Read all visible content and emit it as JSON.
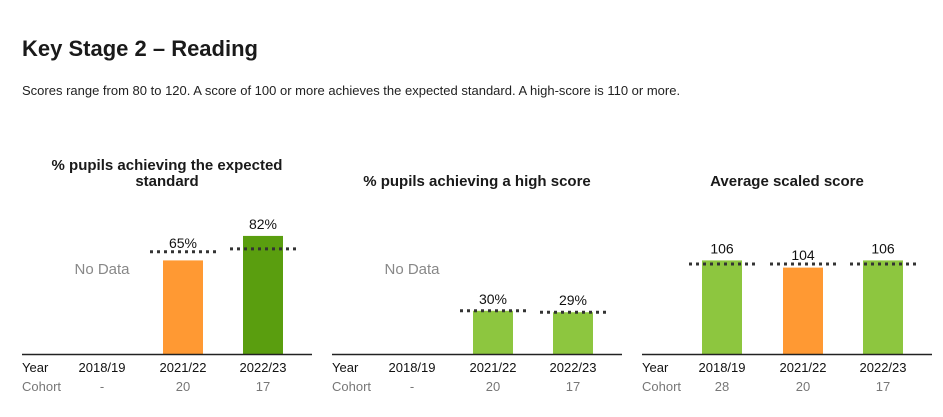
{
  "page": {
    "title": "Key Stage 2 – Reading",
    "subtitle": "Scores range from 80 to 120. A score of 100 or more achieves the expected standard. A high-score is 110 or more."
  },
  "labels": {
    "year": "Year",
    "cohort": "Cohort",
    "no_data": "No Data"
  },
  "colors": {
    "orange": "#ff9933",
    "light_green": "#8dc63f",
    "dark_green": "#5a9e0f",
    "benchmark": "#333333",
    "axis": "#222222",
    "cohort_text": "#777777"
  },
  "chart_data": [
    {
      "type": "bar",
      "title": "% pupils achieving the expected standard",
      "categories": [
        "2018/19",
        "2021/22",
        "2022/23"
      ],
      "cohort": [
        "-",
        "20",
        "17"
      ],
      "values": [
        null,
        65,
        82
      ],
      "value_labels": [
        "",
        "65%",
        "82%"
      ],
      "no_data": [
        true,
        false,
        false
      ],
      "bar_colors": [
        "#ff9933",
        "#ff9933",
        "#5a9e0f"
      ],
      "benchmark": [
        null,
        71,
        73
      ],
      "ylim": [
        0,
        100
      ],
      "grid": false
    },
    {
      "type": "bar",
      "title": "% pupils achieving a high score",
      "categories": [
        "2018/19",
        "2021/22",
        "2022/23"
      ],
      "cohort": [
        "-",
        "20",
        "17"
      ],
      "values": [
        null,
        30,
        29
      ],
      "value_labels": [
        "",
        "30%",
        "29%"
      ],
      "no_data": [
        true,
        false,
        false
      ],
      "bar_colors": [
        "#8dc63f",
        "#8dc63f",
        "#8dc63f"
      ],
      "benchmark": [
        null,
        30,
        29
      ],
      "ylim": [
        0,
        100
      ],
      "grid": false
    },
    {
      "type": "bar",
      "title": "Average scaled score",
      "categories": [
        "2018/19",
        "2021/22",
        "2022/23"
      ],
      "cohort": [
        "28",
        "20",
        "17"
      ],
      "values": [
        106,
        104,
        106
      ],
      "value_labels": [
        "106",
        "104",
        "106"
      ],
      "no_data": [
        false,
        false,
        false
      ],
      "bar_colors": [
        "#8dc63f",
        "#ff9933",
        "#8dc63f"
      ],
      "benchmark": [
        105,
        105,
        105
      ],
      "ylim": [
        80,
        120
      ],
      "grid": false
    }
  ]
}
